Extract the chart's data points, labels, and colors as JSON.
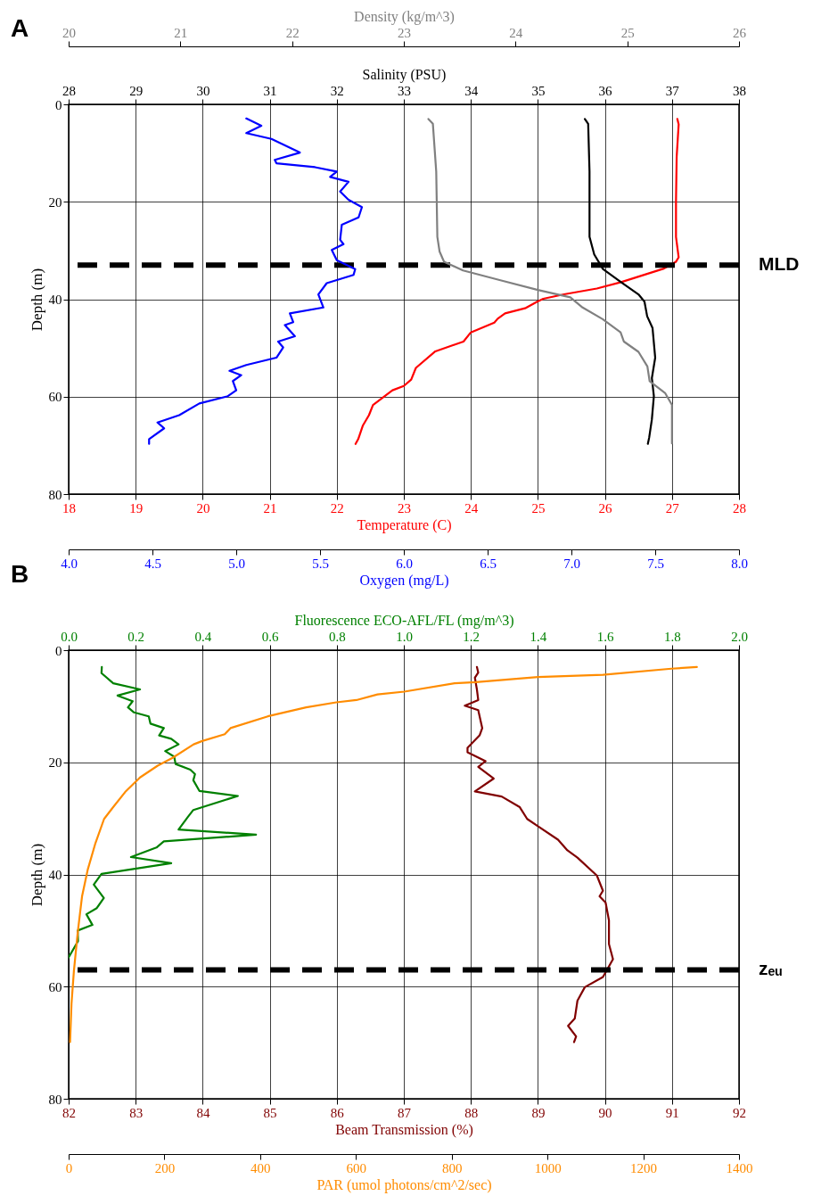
{
  "chart_data": [
    {
      "type": "line",
      "title": "A",
      "ylabel": "Depth (m)",
      "xlabel": "Temperature (C)",
      "x2label": "Salinity (PSU)",
      "xlim": [
        18,
        28
      ],
      "xticks": [
        18,
        19,
        20,
        21,
        22,
        23,
        24,
        25,
        26,
        27,
        28
      ],
      "x2lim": [
        28,
        38
      ],
      "x2ticks": [
        28,
        29,
        30,
        31,
        32,
        33,
        34,
        35,
        36,
        37,
        38
      ],
      "ylim": [
        80,
        0
      ],
      "yticks": [
        0,
        20,
        40,
        60,
        80
      ],
      "grid": true,
      "ref_lines": [
        {
          "axis": "y",
          "value": 33,
          "label": "MLD",
          "color": "#000000",
          "line_style": "dashed"
        }
      ],
      "series": [
        {
          "color": "#ff0000",
          "x": [
            27.08,
            27.1,
            27.07,
            27.06,
            27.06,
            27.1,
            27.06,
            26.88,
            26.24,
            25.88,
            25.39,
            25.08,
            24.99,
            24.82,
            24.51,
            24.4,
            24.35,
            24.0,
            23.89,
            23.47,
            23.18,
            23.11,
            23.0,
            22.83,
            22.54,
            22.48,
            22.39,
            22.32,
            22.28
          ],
          "values": [
            3.0,
            4.1,
            10.8,
            19.9,
            27.2,
            31.4,
            32.3,
            33.7,
            36.5,
            37.8,
            39.0,
            39.9,
            40.5,
            41.8,
            42.9,
            44.0,
            44.8,
            46.8,
            48.7,
            50.7,
            54.1,
            56.5,
            57.8,
            58.7,
            61.7,
            63.8,
            65.9,
            68.7,
            69.7
          ]
        },
        {
          "axis": "x2",
          "color": "#000000",
          "x": [
            35.7,
            35.75,
            35.77,
            35.77,
            35.84,
            35.97,
            36.24,
            36.5,
            36.59,
            36.63,
            36.71,
            36.75,
            36.7,
            36.73,
            36.7,
            36.66,
            36.64
          ],
          "values": [
            3.0,
            4.0,
            13.8,
            27.2,
            30.8,
            33.8,
            36.5,
            39.0,
            40.5,
            43.5,
            45.9,
            52.0,
            56.2,
            59.9,
            64.7,
            68.4,
            69.7
          ]
        }
      ]
    },
    {
      "type": "line",
      "xlabel": "Oxygen (mg/L)",
      "x2label": "Density (kg/m^3)",
      "xlim": [
        4,
        8
      ],
      "xticks": [
        {
          "value": 4,
          "label": "4.0"
        },
        4.5,
        {
          "value": 5,
          "label": "5.0"
        },
        5.5,
        {
          "value": 6,
          "label": "6.0"
        },
        6.5,
        {
          "value": 7,
          "label": "7.0"
        },
        7.5,
        {
          "value": 8,
          "label": "8.0"
        }
      ],
      "x2lim": [
        20,
        26
      ],
      "x2ticks": [
        20,
        21,
        22,
        23,
        24,
        25,
        26
      ],
      "ylim": [
        80,
        0
      ],
      "tick_labels": "x",
      "series": [
        {
          "color": "#0000ff",
          "x": [
            5.06,
            5.15,
            5.06,
            5.21,
            5.38,
            5.23,
            5.24,
            5.47,
            5.6,
            5.56,
            5.67,
            5.62,
            5.67,
            5.75,
            5.73,
            5.63,
            5.62,
            5.64,
            5.57,
            5.6,
            5.71,
            5.7,
            5.54,
            5.49,
            5.52,
            5.32,
            5.34,
            5.29,
            5.35,
            5.25,
            5.28,
            5.24,
            5.06,
            4.96,
            5.03,
            4.98,
            5.0,
            4.95,
            4.78,
            4.66,
            4.53,
            4.57,
            4.48,
            4.48
          ],
          "values": [
            2.9,
            4.4,
            5.9,
            7.1,
            9.9,
            11.4,
            12.1,
            12.9,
            13.8,
            14.9,
            15.9,
            17.9,
            19.6,
            21.1,
            23.2,
            24.7,
            27.8,
            28.7,
            29.9,
            32.0,
            33.8,
            35.0,
            36.7,
            39.0,
            41.7,
            42.9,
            44.7,
            45.3,
            47.6,
            48.7,
            49.9,
            52.0,
            53.5,
            54.7,
            55.6,
            56.8,
            58.7,
            59.9,
            61.4,
            63.8,
            65.3,
            66.5,
            68.7,
            69.7
          ]
        },
        {
          "axis": "x2",
          "color": "#808080",
          "x": [
            23.22,
            23.26,
            23.29,
            23.3,
            23.32,
            23.36,
            23.53,
            23.88,
            24.2,
            24.49,
            24.6,
            24.78,
            24.94,
            24.97,
            25.1,
            25.18,
            25.2,
            25.34,
            25.4,
            25.4,
            25.4
          ],
          "values": [
            3.0,
            4.0,
            13.8,
            27.2,
            30.2,
            32.3,
            34.1,
            36.2,
            38.1,
            39.6,
            41.7,
            44.1,
            46.8,
            48.7,
            50.8,
            53.8,
            56.8,
            59.3,
            61.7,
            65.3,
            69.6
          ]
        }
      ]
    },
    {
      "type": "line",
      "title": "B",
      "ylabel": "Depth (m)",
      "xlabel": "Beam Transmission (%)",
      "x2label": "Fluorescence ECO-AFL/FL (mg/m^3)",
      "xlim": [
        82,
        92
      ],
      "xticks": [
        82,
        83,
        84,
        85,
        86,
        87,
        88,
        89,
        90,
        91,
        92
      ],
      "x2lim": [
        0,
        2
      ],
      "x2ticks": [
        {
          "value": 0,
          "label": "0.0"
        },
        0.2,
        0.4,
        0.6,
        0.8,
        {
          "value": 1,
          "label": "1.0"
        },
        1.2,
        1.4,
        1.6,
        1.8,
        {
          "value": 2,
          "label": "2.0"
        }
      ],
      "ylim": [
        80,
        0
      ],
      "yticks": [
        0,
        20,
        40,
        60,
        80
      ],
      "grid": true,
      "ref_lines": [
        {
          "axis": "y",
          "value": 57,
          "label": "zₑᵤ",
          "color": "#000000",
          "line_style": "dashed"
        }
      ],
      "series": [
        {
          "axis": "x2",
          "color": "#008000",
          "x": [
            0.099,
            0.098,
            0.133,
            0.213,
            0.146,
            0.191,
            0.177,
            0.195,
            0.239,
            0.244,
            0.284,
            0.27,
            0.306,
            0.328,
            0.288,
            0.315,
            0.319,
            0.363,
            0.377,
            0.372,
            0.39,
            0.505,
            0.372,
            0.355,
            0.328,
            0.559,
            0.284,
            0.262,
            0.186,
            0.306,
            0.098,
            0.075,
            0.105,
            0.084,
            0.053,
            0.071,
            0.027,
            0.028,
            0.0
          ],
          "values": [
            3.0,
            4.1,
            5.9,
            7.0,
            8.1,
            9.1,
            10.2,
            11.1,
            11.8,
            13.1,
            13.9,
            15.2,
            15.8,
            16.8,
            18.0,
            19.0,
            20.3,
            21.3,
            22.1,
            23.2,
            25.1,
            26.0,
            28.5,
            29.8,
            32.0,
            32.9,
            34.1,
            35.2,
            36.9,
            38.0,
            39.9,
            41.8,
            44.2,
            46.0,
            47.1,
            49.0,
            50.0,
            51.9,
            54.8
          ]
        },
        {
          "color": "#800000",
          "x": [
            88.09,
            88.11,
            88.06,
            88.09,
            88.11,
            87.91,
            88.11,
            88.17,
            88.13,
            87.95,
            87.95,
            88.22,
            88.11,
            88.34,
            88.06,
            88.46,
            88.73,
            88.84,
            89.0,
            89.3,
            89.44,
            89.59,
            89.88,
            89.97,
            89.92,
            90.01,
            90.06,
            90.06,
            90.12,
            89.97,
            89.7,
            89.59,
            89.55,
            89.45,
            89.57,
            89.54
          ],
          "values": [
            3.0,
            4.0,
            4.9,
            7.0,
            8.9,
            9.9,
            10.7,
            13.9,
            15.2,
            17.4,
            18.2,
            19.8,
            20.8,
            22.9,
            25.2,
            26.1,
            28.0,
            30.1,
            31.4,
            33.8,
            35.7,
            37.0,
            40.2,
            42.9,
            43.9,
            45.0,
            48.2,
            52.4,
            55.1,
            58.3,
            60.1,
            62.5,
            65.7,
            67.0,
            68.9,
            69.9
          ]
        }
      ]
    },
    {
      "type": "line",
      "xlabel": "PAR (umol photons/cm^2/sec)",
      "xlim": [
        0,
        1400
      ],
      "xticks": [
        0,
        200,
        400,
        600,
        800,
        1000,
        1200,
        1400
      ],
      "ylim": [
        80,
        0
      ],
      "tick_labels": "x",
      "series": [
        {
          "color": "#ff8c00",
          "x": [
            1312,
            1259,
            1116,
            980,
            850,
            806,
            701,
            645,
            601,
            559,
            496,
            416,
            338,
            326,
            279,
            261,
            217,
            186,
            149,
            118,
            93,
            74,
            56,
            40,
            28,
            19,
            11,
            6,
            3
          ],
          "values": [
            3.0,
            3.3,
            4.4,
            4.8,
            5.7,
            5.9,
            7.4,
            7.9,
            8.9,
            9.3,
            10.2,
            11.8,
            13.9,
            15.0,
            16.2,
            16.8,
            19.2,
            20.6,
            22.7,
            25.3,
            28.0,
            30.1,
            34.4,
            39.1,
            43.9,
            50.3,
            57.2,
            63.0,
            69.9
          ]
        }
      ]
    }
  ]
}
